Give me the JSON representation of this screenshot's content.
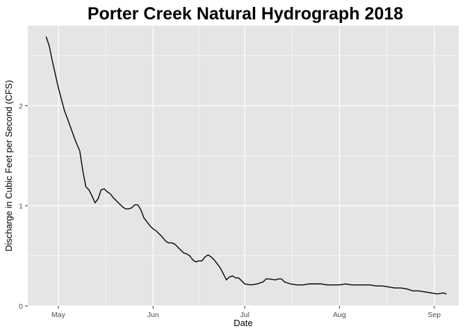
{
  "chart_data": {
    "type": "line",
    "title": "Porter Creek Natural Hydrograph 2018",
    "xlabel": "Date",
    "ylabel": "Discharge in Cubic Feet per Second (CFS)",
    "xlim": [
      "2018-04-21",
      "2018-09-09"
    ],
    "ylim": [
      0,
      2.8
    ],
    "x_ticks": [
      {
        "date": "2018-05-01",
        "label": "May"
      },
      {
        "date": "2018-06-01",
        "label": "Jun"
      },
      {
        "date": "2018-07-01",
        "label": "Jul"
      },
      {
        "date": "2018-08-01",
        "label": "Aug"
      },
      {
        "date": "2018-09-01",
        "label": "Sep"
      }
    ],
    "y_ticks": [
      0,
      1,
      2
    ],
    "grid": true,
    "colors": {
      "panel": "#e5e5e5",
      "grid": "#ffffff",
      "line": "#000000",
      "tick": "#333333"
    },
    "series": [
      {
        "x": [
          "2018-04-27",
          "2018-04-28",
          "2018-04-29",
          "2018-05-01",
          "2018-05-03",
          "2018-05-04",
          "2018-05-06",
          "2018-05-07",
          "2018-05-08",
          "2018-05-09",
          "2018-05-10",
          "2018-05-11",
          "2018-05-12",
          "2018-05-13",
          "2018-05-14",
          "2018-05-15",
          "2018-05-16",
          "2018-05-17",
          "2018-05-18",
          "2018-05-19",
          "2018-05-20",
          "2018-05-21",
          "2018-05-22",
          "2018-05-23",
          "2018-05-24",
          "2018-05-25",
          "2018-05-26",
          "2018-05-27",
          "2018-05-28",
          "2018-05-29",
          "2018-05-30",
          "2018-05-31",
          "2018-06-01",
          "2018-06-02",
          "2018-06-03",
          "2018-06-04",
          "2018-06-05",
          "2018-06-06",
          "2018-06-07",
          "2018-06-08",
          "2018-06-09",
          "2018-06-10",
          "2018-06-11",
          "2018-06-12",
          "2018-06-13",
          "2018-06-14",
          "2018-06-15",
          "2018-06-16",
          "2018-06-17",
          "2018-06-18",
          "2018-06-19",
          "2018-06-20",
          "2018-06-21",
          "2018-06-22",
          "2018-06-23",
          "2018-06-24",
          "2018-06-25",
          "2018-06-26",
          "2018-06-27",
          "2018-06-28",
          "2018-06-29",
          "2018-06-30",
          "2018-07-01",
          "2018-07-03",
          "2018-07-05",
          "2018-07-06",
          "2018-07-07",
          "2018-07-08",
          "2018-07-09",
          "2018-07-11",
          "2018-07-12",
          "2018-07-13",
          "2018-07-14",
          "2018-07-16",
          "2018-07-18",
          "2018-07-20",
          "2018-07-22",
          "2018-07-24",
          "2018-07-26",
          "2018-07-28",
          "2018-07-30",
          "2018-08-01",
          "2018-08-03",
          "2018-08-05",
          "2018-08-07",
          "2018-08-09",
          "2018-08-11",
          "2018-08-13",
          "2018-08-15",
          "2018-08-17",
          "2018-08-19",
          "2018-08-21",
          "2018-08-23",
          "2018-08-25",
          "2018-08-27",
          "2018-08-29",
          "2018-08-31",
          "2018-09-02",
          "2018-09-04",
          "2018-09-05"
        ],
        "y": [
          2.69,
          2.6,
          2.45,
          2.18,
          1.95,
          1.87,
          1.7,
          1.62,
          1.55,
          1.35,
          1.19,
          1.16,
          1.1,
          1.03,
          1.07,
          1.16,
          1.17,
          1.14,
          1.12,
          1.08,
          1.05,
          1.02,
          0.99,
          0.97,
          0.97,
          0.98,
          1.01,
          1.01,
          0.96,
          0.88,
          0.84,
          0.8,
          0.77,
          0.75,
          0.72,
          0.69,
          0.65,
          0.63,
          0.63,
          0.62,
          0.59,
          0.56,
          0.53,
          0.52,
          0.5,
          0.46,
          0.44,
          0.45,
          0.45,
          0.49,
          0.51,
          0.49,
          0.46,
          0.42,
          0.38,
          0.32,
          0.26,
          0.29,
          0.3,
          0.28,
          0.28,
          0.25,
          0.22,
          0.21,
          0.22,
          0.23,
          0.24,
          0.27,
          0.27,
          0.26,
          0.27,
          0.27,
          0.24,
          0.22,
          0.21,
          0.21,
          0.22,
          0.22,
          0.22,
          0.21,
          0.21,
          0.21,
          0.22,
          0.21,
          0.21,
          0.21,
          0.21,
          0.2,
          0.2,
          0.19,
          0.18,
          0.18,
          0.17,
          0.15,
          0.15,
          0.14,
          0.13,
          0.12,
          0.13,
          0.12
        ]
      }
    ]
  }
}
